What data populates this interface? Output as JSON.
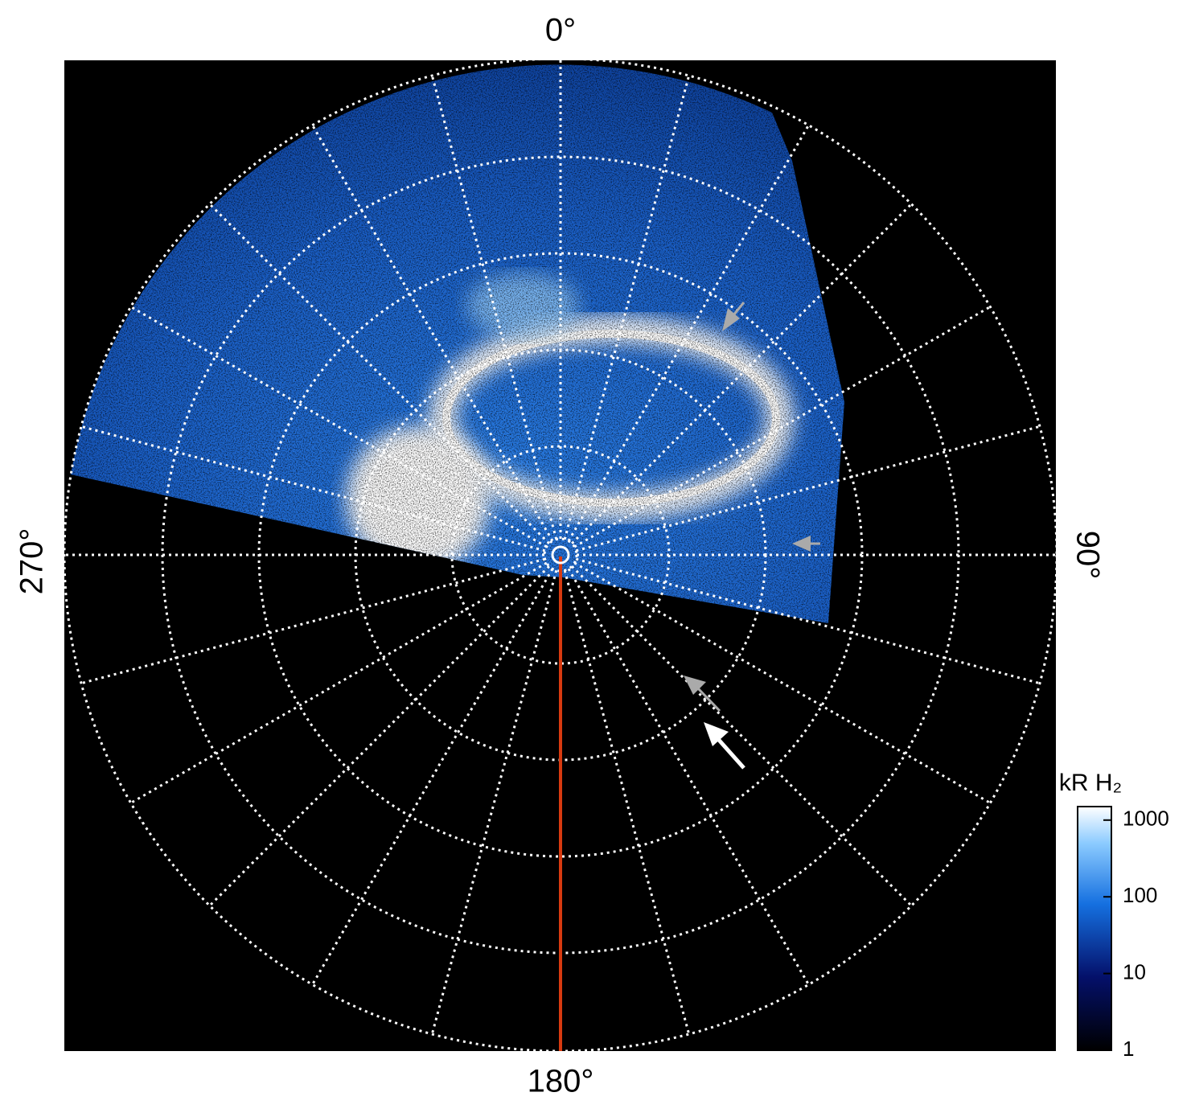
{
  "angle_labels": {
    "top": "0°",
    "right": "90°",
    "bottom": "180°",
    "left": "270°"
  },
  "colorbar": {
    "title": "kR H₂",
    "scale": "log",
    "lim": [
      1,
      1500
    ],
    "ticks": [
      1,
      10,
      100,
      1000
    ]
  }
}
